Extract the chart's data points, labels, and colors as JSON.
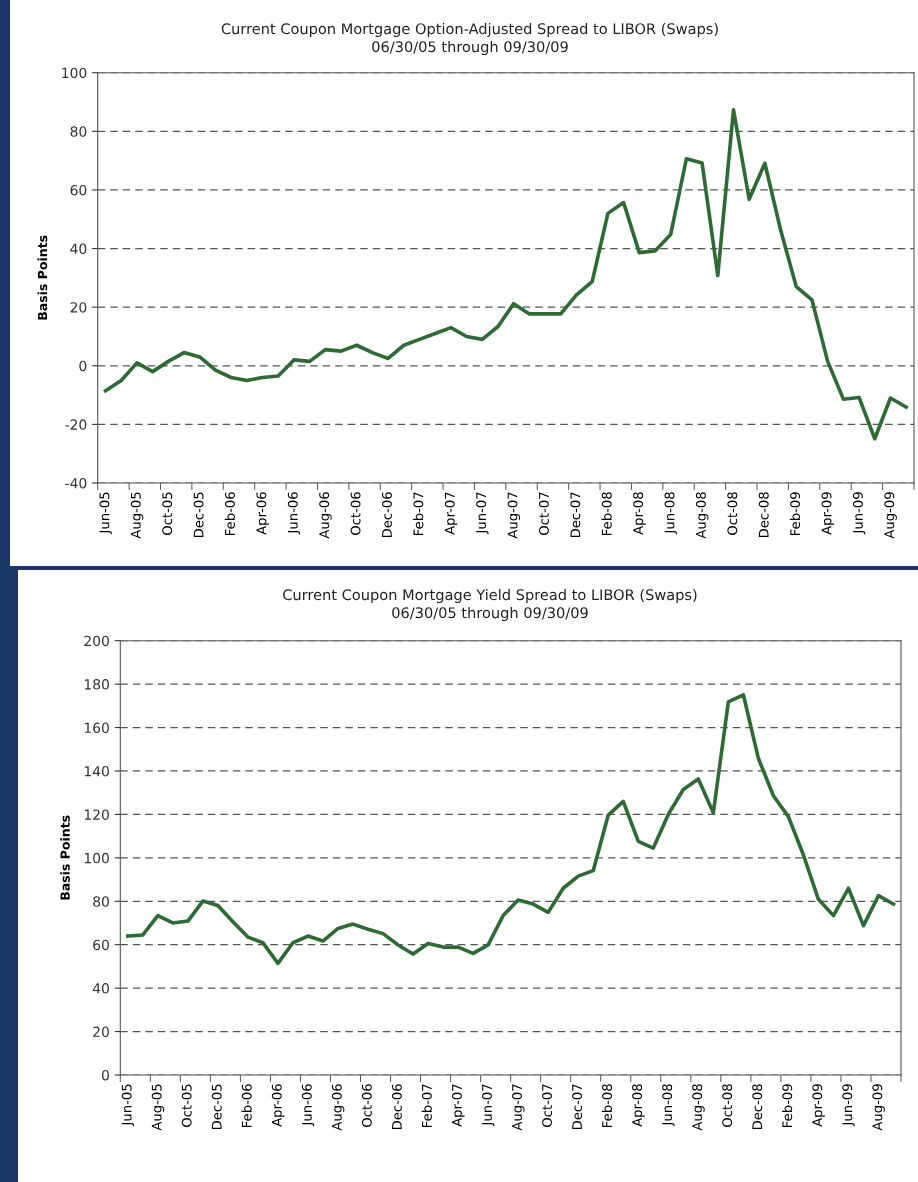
{
  "chart_data": [
    {
      "type": "line",
      "title": "Current Coupon Mortgage Option-Adjusted Spread to LIBOR (Swaps)",
      "subtitle": "06/30/05 through 09/30/09",
      "ylabel": "Basis Points",
      "categories": [
        "Jun-05",
        null,
        "Aug-05",
        null,
        "Oct-05",
        null,
        "Dec-05",
        null,
        "Feb-06",
        null,
        "Apr-06",
        null,
        "Jun-06",
        null,
        "Aug-06",
        null,
        "Oct-06",
        null,
        "Dec-06",
        null,
        "Feb-07",
        null,
        "Apr-07",
        null,
        "Jun-07",
        null,
        "Aug-07",
        null,
        "Oct-07",
        null,
        "Dec-07",
        null,
        "Feb-08",
        null,
        "Apr-08",
        null,
        "Jun-08",
        null,
        "Aug-08",
        null,
        "Oct-08",
        null,
        "Dec-08",
        null,
        "Feb-09",
        null,
        "Apr-09",
        null,
        "Jun-09",
        null,
        "Aug-09",
        null
      ],
      "series": [
        {
          "color": "#2e6b34",
          "values": [
            -8.5,
            -5,
            1,
            -2,
            1.5,
            4.5,
            3,
            -1.5,
            -4,
            -5,
            -4,
            -3.5,
            2,
            1.5,
            5.5,
            5,
            7,
            4.5,
            2.5,
            7,
            9,
            11,
            13,
            10,
            9,
            13.4,
            21.2,
            17.7,
            17.7,
            17.7,
            24.2,
            28.7,
            52,
            55.7,
            38.6,
            39.2,
            44.8,
            70.6,
            69.2,
            30.8,
            87.3,
            56.8,
            69.1,
            46.4,
            27,
            22.5,
            1.5,
            -11.4,
            -10.8,
            -24.9,
            -11,
            -14.1
          ]
        }
      ],
      "ylim": [
        -40,
        100
      ],
      "yticks": [
        -40,
        -20,
        0,
        20,
        40,
        60,
        80,
        100
      ],
      "grid": "y",
      "legend": false,
      "marker": "none",
      "line_style": "solid"
    },
    {
      "type": "line",
      "title": "Current Coupon Mortgage Yield Spread to LIBOR (Swaps)",
      "subtitle": "06/30/05 through 09/30/09",
      "ylabel": "Basis Points",
      "categories": [
        "Jun-05",
        null,
        "Aug-05",
        null,
        "Oct-05",
        null,
        "Dec-05",
        null,
        "Feb-06",
        null,
        "Apr-06",
        null,
        "Jun-06",
        null,
        "Aug-06",
        null,
        "Oct-06",
        null,
        "Dec-06",
        null,
        "Feb-07",
        null,
        "Apr-07",
        null,
        "Jun-07",
        null,
        "Aug-07",
        null,
        "Oct-07",
        null,
        "Dec-07",
        null,
        "Feb-08",
        null,
        "Apr-08",
        null,
        "Jun-08",
        null,
        "Aug-08",
        null,
        "Oct-08",
        null,
        "Dec-08",
        null,
        "Feb-09",
        null,
        "Apr-09",
        null,
        "Jun-09",
        null,
        "Aug-09",
        null
      ],
      "series": [
        {
          "color": "#2e6b34",
          "values": [
            64,
            64.5,
            73.4,
            70,
            70.9,
            80.1,
            78.1,
            70.6,
            63.5,
            60.9,
            51.4,
            60.9,
            64,
            61.7,
            67.5,
            69.5,
            67.1,
            65.1,
            59.9,
            55.7,
            60.6,
            58.9,
            58.9,
            56,
            59.9,
            73.4,
            80.6,
            78.7,
            74.9,
            86,
            91.6,
            94.1,
            119.7,
            126,
            107.6,
            104.5,
            120,
            131.5,
            136.3,
            120.8,
            171.8,
            175.1,
            145.8,
            128.6,
            119,
            101.3,
            80.9,
            73.4,
            86,
            68.8,
            82.6,
            78.7
          ]
        }
      ],
      "ylim": [
        0,
        200
      ],
      "yticks": [
        0,
        20,
        40,
        60,
        80,
        100,
        120,
        140,
        160,
        180,
        200
      ],
      "grid": "y",
      "legend": false,
      "marker": "none",
      "line_style": "solid"
    }
  ]
}
